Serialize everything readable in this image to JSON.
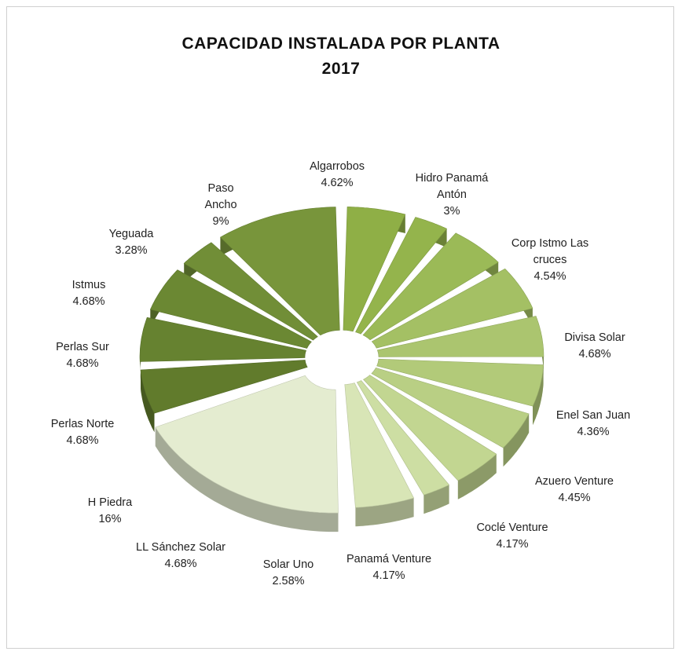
{
  "title": [
    "CAPACIDAD  INSTALADA  POR  PLANTA",
    "2017"
  ],
  "chart_data": {
    "type": "pie",
    "variant": "3d-doughnut-exploded",
    "title": "CAPACIDAD  INSTALADA  POR  PLANTA 2017",
    "legend": "none",
    "series": [
      {
        "name": "Algarrobos",
        "label_lines": [
          "Algarrobos"
        ],
        "value": 4.62,
        "value_label": "4.62%",
        "color": "#8faf46"
      },
      {
        "name": "Hidro Panamá Antón",
        "label_lines": [
          "Hidro Panamá",
          "Antón"
        ],
        "value": 3,
        "value_label": "3%",
        "color": "#94b44c"
      },
      {
        "name": "Corp Istmo Las cruces",
        "label_lines": [
          "Corp Istmo Las",
          "cruces"
        ],
        "value": 4.54,
        "value_label": "4.54%",
        "color": "#9bba57"
      },
      {
        "name": "Divisa Solar",
        "label_lines": [
          "Divisa Solar"
        ],
        "value": 4.68,
        "value_label": "4.68%",
        "color": "#a4c064"
      },
      {
        "name": "Enel San Juan",
        "label_lines": [
          "Enel San Juan"
        ],
        "value": 4.36,
        "value_label": "4.36%",
        "color": "#abc56f"
      },
      {
        "name": "Azuero Venture",
        "label_lines": [
          "Azuero Venture"
        ],
        "value": 4.45,
        "value_label": "4.45%",
        "color": "#b2ca79"
      },
      {
        "name": "Coclé Venture",
        "label_lines": [
          "Coclé Venture"
        ],
        "value": 4.17,
        "value_label": "4.17%",
        "color": "#b9cf84"
      },
      {
        "name": "Panamá Venture",
        "label_lines": [
          "Panamá Venture"
        ],
        "value": 4.17,
        "value_label": "4.17%",
        "color": "#c2d691"
      },
      {
        "name": "Solar Uno",
        "label_lines": [
          "Solar Uno"
        ],
        "value": 2.58,
        "value_label": "2.58%",
        "color": "#cddea3"
      },
      {
        "name": "LL Sánchez Solar",
        "label_lines": [
          "LL Sánchez Solar"
        ],
        "value": 4.68,
        "value_label": "4.68%",
        "color": "#d8e5b6"
      },
      {
        "name": "H Piedra",
        "label_lines": [
          "H Piedra"
        ],
        "value": 16,
        "value_label": "16%",
        "color": "#e4ecd0"
      },
      {
        "name": "Perlas Norte",
        "label_lines": [
          "Perlas Norte"
        ],
        "value": 4.68,
        "value_label": "4.68%",
        "color": "#617b2c"
      },
      {
        "name": "Perlas Sur",
        "label_lines": [
          "Perlas Sur"
        ],
        "value": 4.68,
        "value_label": "4.68%",
        "color": "#668230"
      },
      {
        "name": "Istmus",
        "label_lines": [
          "Istmus"
        ],
        "value": 4.68,
        "value_label": "4.68%",
        "color": "#6b8833"
      },
      {
        "name": "Yeguada",
        "label_lines": [
          "Yeguada"
        ],
        "value": 3.28,
        "value_label": "3.28%",
        "color": "#718e37"
      },
      {
        "name": "Paso Ancho",
        "label_lines": [
          "Paso",
          "Ancho"
        ],
        "value": 9,
        "value_label": "9%",
        "color": "#78953b"
      }
    ]
  }
}
